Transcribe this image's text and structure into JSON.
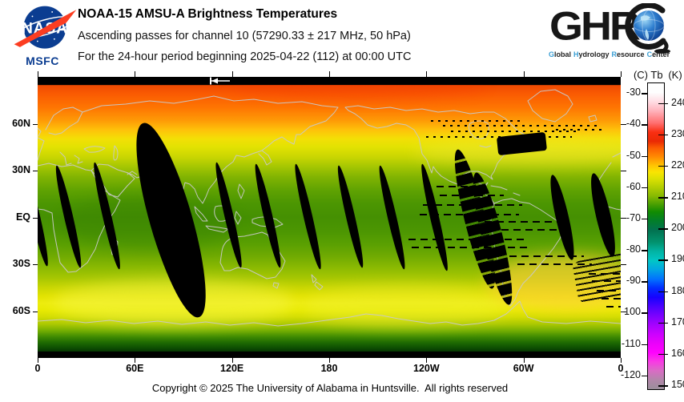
{
  "branding": {
    "nasa": {
      "name": "NASA",
      "center": "MSFC"
    },
    "ghrc": {
      "letters": "GHR",
      "tagline": [
        "Global",
        "Hydrology",
        "Resource",
        "Center"
      ]
    }
  },
  "header": {
    "title": "NOAA-15 AMSU-A Brightness Temperatures",
    "line2": "Ascending passes for channel 10 (57290.33 ± 217 MHz, 50 hPa)",
    "line3": "For the 24-hour period beginning 2025-04-22 (112) at 00:00 UTC"
  },
  "footer": {
    "copyright": "Copyright © 2025 The University of Alabama in Huntsville.  All rights reserved"
  },
  "colors": {
    "nasa_blue": "#0b3d91",
    "nasa_red": "#fc3d21",
    "ghrc_blue": "#3b9fd4",
    "coastline_gray": "#c9c9c9",
    "missing_data_black": "#000000"
  },
  "chart_data": {
    "type": "heatmap",
    "title": "NOAA-15 AMSU-A Brightness Temperatures",
    "subtitle": "Ascending passes for channel 10 (57290.33 ± 217 MHz, 50 hPa)",
    "period": "24-hour period beginning 2025-04-22 (112) at 00:00 UTC",
    "projection": "equirectangular world map, longitude 0E to 360E left-to-right, 90N top to 90S bottom",
    "x_axis": [
      {
        "label": "0",
        "lon": 0
      },
      {
        "label": "60E",
        "lon": 60
      },
      {
        "label": "120E",
        "lon": 120
      },
      {
        "label": "180",
        "lon": 180
      },
      {
        "label": "120W",
        "lon": 240
      },
      {
        "label": "60W",
        "lon": 300
      },
      {
        "label": "0",
        "lon": 360
      }
    ],
    "y_axis": [
      {
        "label": "60N",
        "lat": 60
      },
      {
        "label": "30N",
        "lat": 30
      },
      {
        "label": "EQ",
        "lat": 0
      },
      {
        "label": "30S",
        "lat": -30
      },
      {
        "label": "60S",
        "lat": -60
      }
    ],
    "colorbar": {
      "unit_left": "(C)",
      "unit_center": "Tb",
      "unit_right": "(K)",
      "kelvin_ticks": [
        240,
        230,
        220,
        210,
        200,
        190,
        180,
        170,
        160,
        150
      ],
      "celsius_ticks": [
        -30,
        -40,
        -50,
        -60,
        -70,
        -80,
        -90,
        -100,
        -110,
        -120
      ],
      "range_k": [
        149,
        246.5
      ],
      "palette": [
        [
          0,
          "#ffffff"
        ],
        [
          3,
          "#fefefe"
        ],
        [
          6,
          "#ffdde4"
        ],
        [
          9,
          "#ffb3bc"
        ],
        [
          13,
          "#ff6f6f"
        ],
        [
          16,
          "#f92e12"
        ],
        [
          19,
          "#ea2a04"
        ],
        [
          21,
          "#fb5a02"
        ],
        [
          24,
          "#ff8a02"
        ],
        [
          27,
          "#ffc602"
        ],
        [
          29,
          "#fae402"
        ],
        [
          31,
          "#dfe202"
        ],
        [
          34,
          "#b3ce02"
        ],
        [
          37,
          "#84b802"
        ],
        [
          39.5,
          "#4ba002"
        ],
        [
          42,
          "#118c02"
        ],
        [
          45,
          "#027e2a"
        ],
        [
          48,
          "#027250"
        ],
        [
          52,
          "#02936e"
        ],
        [
          55,
          "#02b4a4"
        ],
        [
          58,
          "#02c6c6"
        ],
        [
          61,
          "#02a4e4"
        ],
        [
          64,
          "#0272fe"
        ],
        [
          67,
          "#022cfe"
        ],
        [
          70,
          "#1802fe"
        ],
        [
          73,
          "#4c02fe"
        ],
        [
          76,
          "#7c02fe"
        ],
        [
          79,
          "#a602fe"
        ],
        [
          82,
          "#cc02fe"
        ],
        [
          85,
          "#ea02fa"
        ],
        [
          88,
          "#fe02fe"
        ],
        [
          91,
          "#f83ae4"
        ],
        [
          94,
          "#d86cc4"
        ],
        [
          97,
          "#b286aa"
        ],
        [
          100,
          "#9b8f9b"
        ]
      ]
    },
    "latitude_profile_k": {
      "lats": [
        90,
        80,
        70,
        60,
        50,
        40,
        30,
        20,
        10,
        0,
        -10,
        -20,
        -30,
        -40,
        -50,
        -60,
        -70,
        -80,
        -88
      ],
      "tb": [
        233,
        231,
        228,
        224,
        220,
        216.5,
        213.5,
        211,
        209,
        208,
        209,
        211,
        213.5,
        217,
        219,
        215.5,
        209,
        199,
        193
      ]
    },
    "coverage_gaps": [
      {
        "lon_east": -1,
        "width_deg": 5.5,
        "lat_north": 33,
        "lat_south": -32,
        "tilt_deg": -13,
        "type": "thin"
      },
      {
        "lon_east": 19,
        "width_deg": 5.5,
        "lat_north": 34,
        "lat_south": -33,
        "tilt_deg": -13,
        "type": "thin"
      },
      {
        "lon_east": 43,
        "width_deg": 5.5,
        "lat_north": 36,
        "lat_south": -34,
        "tilt_deg": -13,
        "type": "thin"
      },
      {
        "lon_east": 82,
        "width_deg": 26,
        "lat_north": 63,
        "lat_south": -66,
        "tilt_deg": -16,
        "type": "wide"
      },
      {
        "lon_east": 118,
        "width_deg": 5.5,
        "lat_north": 36,
        "lat_south": -33,
        "tilt_deg": -13,
        "type": "thin"
      },
      {
        "lon_east": 142,
        "width_deg": 5.5,
        "lat_north": 35,
        "lat_south": -33,
        "tilt_deg": -13,
        "type": "thin"
      },
      {
        "lon_east": 167,
        "width_deg": 5.5,
        "lat_north": 35,
        "lat_south": -34,
        "tilt_deg": -13,
        "type": "thin"
      },
      {
        "lon_east": 193,
        "width_deg": 5.5,
        "lat_north": 34,
        "lat_south": -33,
        "tilt_deg": -13,
        "type": "thin"
      },
      {
        "lon_east": 219,
        "width_deg": 5.5,
        "lat_north": 34,
        "lat_south": -34,
        "tilt_deg": -13,
        "type": "thin"
      },
      {
        "lon_east": 245,
        "width_deg": 5.5,
        "lat_north": 35,
        "lat_south": -35,
        "tilt_deg": -13,
        "type": "thin"
      },
      {
        "lon_east": 299,
        "width_deg": 30,
        "lat_north": 53,
        "lat_south": 41,
        "tilt_deg": -6,
        "type": "block"
      },
      {
        "lon_east": 270,
        "width_deg": 13,
        "lat_north": 45,
        "lat_south": -47,
        "tilt_deg": -14,
        "type": "wide2"
      },
      {
        "lon_east": 281,
        "width_deg": 13,
        "lat_north": 30,
        "lat_south": -57,
        "tilt_deg": -14,
        "type": "wide2"
      },
      {
        "lon_east": 352,
        "width_deg": 40,
        "lat_north": -25,
        "lat_south": -52,
        "tilt_deg": -10,
        "type": "striped"
      },
      {
        "lon_east": 324,
        "width_deg": 8,
        "lat_north": 28,
        "lat_south": -28,
        "tilt_deg": -13,
        "type": "thin"
      },
      {
        "lon_east": 349,
        "width_deg": 9,
        "lat_north": 29,
        "lat_south": -26,
        "tilt_deg": -13,
        "type": "thin"
      }
    ],
    "missing_scan_lines": [
      {
        "lat": 62,
        "lon_a": 243,
        "lon_b": 300,
        "style": "dotted"
      },
      {
        "lat": 58.5,
        "lon_a": 250,
        "lon_b": 332,
        "style": "dotted"
      },
      {
        "lat": 55,
        "lon_a": 255,
        "lon_b": 335,
        "style": "dotted"
      },
      {
        "lat": 51.5,
        "lon_a": 240,
        "lon_b": 330,
        "style": "dotted"
      },
      {
        "lat": 59,
        "lon_a": 317,
        "lon_b": 347,
        "style": "dotted"
      },
      {
        "lat": 56,
        "lon_a": 320,
        "lon_b": 350,
        "style": "dotted"
      },
      {
        "lat": 20,
        "lon_a": 246,
        "lon_b": 276,
        "style": "dashed"
      },
      {
        "lat": 14,
        "lon_a": 248,
        "lon_b": 288,
        "style": "dashed"
      },
      {
        "lat": 8,
        "lon_a": 238,
        "lon_b": 299,
        "style": "dashed"
      },
      {
        "lat": 2,
        "lon_a": 236,
        "lon_b": 297,
        "style": "dashed"
      },
      {
        "lat": -3,
        "lon_a": 276,
        "lon_b": 326,
        "style": "dashed"
      },
      {
        "lat": -8,
        "lon_a": 279,
        "lon_b": 329,
        "style": "dashed"
      },
      {
        "lat": -14,
        "lon_a": 229,
        "lon_b": 301,
        "style": "dashed"
      },
      {
        "lat": -19,
        "lon_a": 231,
        "lon_b": 304,
        "style": "dashed"
      },
      {
        "lat": -25,
        "lon_a": 291,
        "lon_b": 337,
        "style": "dashed"
      },
      {
        "lat": -30,
        "lon_a": 296,
        "lon_b": 342,
        "style": "dashed"
      },
      {
        "lat": -36,
        "lon_a": 340,
        "lon_b": 377,
        "style": "dashed"
      },
      {
        "lat": -41,
        "lon_a": 342,
        "lon_b": 378,
        "style": "dashed"
      },
      {
        "lat": -47,
        "lon_a": 345,
        "lon_b": 376,
        "style": "dashed"
      },
      {
        "lat": -52,
        "lon_a": 348,
        "lon_b": 373,
        "style": "dashed"
      },
      {
        "lat": -57,
        "lon_a": 351,
        "lon_b": 369,
        "style": "dashed"
      }
    ],
    "direction_arrow": {
      "lon": 112,
      "lat": 88
    }
  }
}
